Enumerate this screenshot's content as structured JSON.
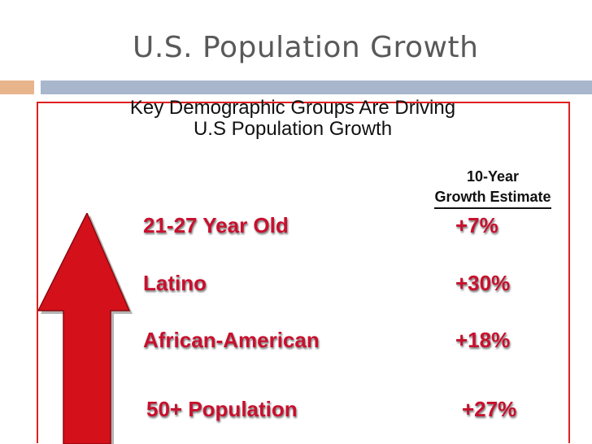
{
  "slide": {
    "title": "U.S. Population Growth"
  },
  "infographic": {
    "heading_line1": "Key Demographic Groups Are Driving",
    "heading_line2": "U.S Population Growth",
    "column_header_line1": "10-Year",
    "column_header_line2": "Growth Estimate",
    "rows": [
      {
        "label": "21-27 Year Old",
        "value": "+7%"
      },
      {
        "label": "Latino",
        "value": "+30%"
      },
      {
        "label": "African-American",
        "value": "+18%"
      },
      {
        "label": "50+ Population",
        "value": "+27%"
      }
    ]
  },
  "colors": {
    "accent_orange": "#e8b48c",
    "accent_blue": "#a9b7cd",
    "frame_red": "#e02020",
    "text_red": "#c8102e",
    "arrow_red": "#d4101a"
  },
  "icons": {
    "arrow": "up-arrow-icon"
  }
}
